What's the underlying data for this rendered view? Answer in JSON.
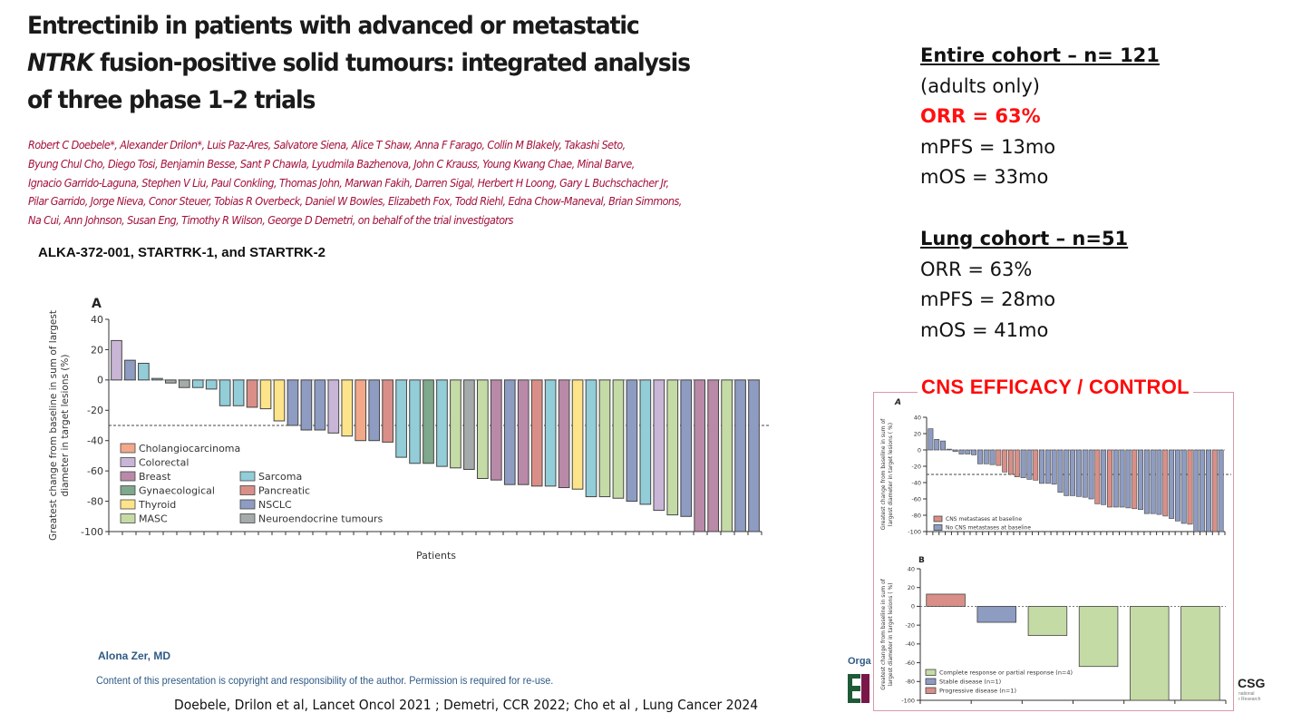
{
  "title": {
    "part1": "Entrectinib in patients with advanced or metastatic ",
    "italic": "NTRK",
    "part2": " fusion-positive solid tumours: integrated analysis of three phase 1–2 trials"
  },
  "authors": "Robert C Doebele*, Alexander Drilon*, Luis Paz-Ares, Salvatore Siena, Alice T Shaw, Anna F Farago, Collin M Blakely, Takashi Seto,\nByung Chul Cho, Diego Tosi, Benjamin Besse, Sant P Chawla, Lyudmila Bazhenova, John C Krauss, Young Kwang Chae, Minal Barve,\nIgnacio Garrido-Laguna, Stephen V Liu, Paul Conkling, Thomas John, Marwan Fakih, Darren Sigal, Herbert H Loong, Gary L Buchschacher Jr,\nPilar Garrido, Jorge Nieva, Conor Steuer, Tobias R Overbeck, Daniel W Bowles, Elizabeth Fox, Todd Riehl, Edna Chow-Maneval, Brian Simmons,\nNa Cui, Ann Johnson, Susan Eng, Timothy R Wilson, George D Demetri, on behalf of the trial investigators",
  "trials": "ALKA-372-001, STARTRK-1, and STARTRK-2",
  "summary": {
    "entire_heading": "Entire cohort – n= 121",
    "entire_note": "(adults only)",
    "entire_orr": "ORR = 63%",
    "entire_mpfs": "mPFS = 13mo",
    "entire_mos": "mOS = 33mo",
    "lung_heading": "Lung cohort – n=51",
    "lung_orr": "ORR = 63%",
    "lung_mpfs": "mPFS = 28mo",
    "lung_mos": "mOS = 41mo",
    "highlight_color": "#ff1010"
  },
  "cns_title": "CNS EFFICACY / CONTROL",
  "footer": {
    "presenter": "Alona Zer, MD",
    "copyright": "Content of this presentation is copyright and responsibility of the author. Permission is required for re-use.",
    "references": "Doebele, Drilon et al, Lancet Oncol 2021 ; Demetri, CCR 2022; Cho et al , Lung Cancer 2024",
    "organiser_label": "Orga",
    "logo_right": "CSG",
    "logo_right_sub": "national\nr Research"
  },
  "chart_data": [
    {
      "type": "bar",
      "panel": "A",
      "title": "A",
      "xlabel": "Patients",
      "ylabel": "Greatest change from baseline in sum of largest diameter in target lesions (%)",
      "ylabel_lines": [
        "Greatest change from baseline in sum of largest",
        "diameter in target lesions (%)"
      ],
      "ylim": [
        -100,
        40
      ],
      "yticks": [
        "40",
        "20",
        "0",
        "-20",
        "-40",
        "-60",
        "-80",
        "-100"
      ],
      "ytick_values": [
        40,
        20,
        0,
        -20,
        -40,
        -60,
        -80,
        -100
      ],
      "reference_line": -30,
      "legend": [
        {
          "name": "Cholangiocarcinoma",
          "color": "#f2a98a"
        },
        {
          "name": "Colorectal",
          "color": "#c9b6d6"
        },
        {
          "name": "Breast",
          "color": "#b98aa8"
        },
        {
          "name": "Gynaecological",
          "color": "#7fa88c"
        },
        {
          "name": "Thyroid",
          "color": "#fde48a"
        },
        {
          "name": "MASC",
          "color": "#c5dba6"
        },
        {
          "name": "Sarcoma",
          "color": "#92cdd8"
        },
        {
          "name": "Pancreatic",
          "color": "#d98f88"
        },
        {
          "name": "NSCLC",
          "color": "#8e9cc2"
        },
        {
          "name": "Neuroendocrine tumours",
          "color": "#a5aaab"
        }
      ],
      "bars": [
        {
          "value": 26,
          "type": "Colorectal"
        },
        {
          "value": 13,
          "type": "NSCLC"
        },
        {
          "value": 11,
          "type": "Sarcoma"
        },
        {
          "value": 1,
          "type": "Sarcoma"
        },
        {
          "value": -2,
          "type": "Neuroendocrine tumours"
        },
        {
          "value": -5,
          "type": "Neuroendocrine tumours"
        },
        {
          "value": -5,
          "type": "Sarcoma"
        },
        {
          "value": -6,
          "type": "Sarcoma"
        },
        {
          "value": -17,
          "type": "Sarcoma"
        },
        {
          "value": -17,
          "type": "Sarcoma"
        },
        {
          "value": -18,
          "type": "Pancreatic"
        },
        {
          "value": -19,
          "type": "Thyroid"
        },
        {
          "value": -27,
          "type": "Thyroid"
        },
        {
          "value": -30,
          "type": "NSCLC"
        },
        {
          "value": -33,
          "type": "NSCLC"
        },
        {
          "value": -33,
          "type": "NSCLC"
        },
        {
          "value": -35,
          "type": "Colorectal"
        },
        {
          "value": -37,
          "type": "Thyroid"
        },
        {
          "value": -40,
          "type": "Cholangiocarcinoma"
        },
        {
          "value": -40,
          "type": "NSCLC"
        },
        {
          "value": -41,
          "type": "Pancreatic"
        },
        {
          "value": -51,
          "type": "Sarcoma"
        },
        {
          "value": -55,
          "type": "Sarcoma"
        },
        {
          "value": -55,
          "type": "Gynaecological"
        },
        {
          "value": -57,
          "type": "Sarcoma"
        },
        {
          "value": -58,
          "type": "MASC"
        },
        {
          "value": -59,
          "type": "Neuroendocrine tumours"
        },
        {
          "value": -65,
          "type": "MASC"
        },
        {
          "value": -66,
          "type": "Breast"
        },
        {
          "value": -69,
          "type": "NSCLC"
        },
        {
          "value": -69,
          "type": "Breast"
        },
        {
          "value": -70,
          "type": "Pancreatic"
        },
        {
          "value": -70,
          "type": "Sarcoma"
        },
        {
          "value": -71,
          "type": "Breast"
        },
        {
          "value": -72,
          "type": "Thyroid"
        },
        {
          "value": -77,
          "type": "Sarcoma"
        },
        {
          "value": -77,
          "type": "MASC"
        },
        {
          "value": -78,
          "type": "MASC"
        },
        {
          "value": -80,
          "type": "NSCLC"
        },
        {
          "value": -82,
          "type": "Sarcoma"
        },
        {
          "value": -86,
          "type": "Colorectal"
        },
        {
          "value": -89,
          "type": "MASC"
        },
        {
          "value": -90,
          "type": "NSCLC"
        },
        {
          "value": -100,
          "type": "Breast"
        },
        {
          "value": -100,
          "type": "Breast"
        },
        {
          "value": -100,
          "type": "MASC"
        },
        {
          "value": -100,
          "type": "NSCLC"
        },
        {
          "value": -100,
          "type": "NSCLC"
        }
      ]
    },
    {
      "type": "bar",
      "panel": "CNS-A",
      "title": "A",
      "ylabel_lines": [
        "Greatest change from baseline in sum of",
        "largest diameter in target lesions ( %)"
      ],
      "ylim": [
        -100,
        40
      ],
      "yticks": [
        "40",
        "20",
        "0",
        "-20",
        "-40",
        "-60",
        "-80",
        "-100"
      ],
      "ytick_values": [
        40,
        20,
        0,
        -20,
        -40,
        -60,
        -80,
        -100
      ],
      "reference_line": -30,
      "legend": [
        {
          "name": "CNS metastases at baseline",
          "color": "#d98f88"
        },
        {
          "name": "No CNS metastases at baseline",
          "color": "#8e9cc2"
        }
      ],
      "bars": [
        {
          "value": 26,
          "cns": false
        },
        {
          "value": 13,
          "cns": false
        },
        {
          "value": 11,
          "cns": false
        },
        {
          "value": 1,
          "cns": false
        },
        {
          "value": -2,
          "cns": false
        },
        {
          "value": -5,
          "cns": false
        },
        {
          "value": -5,
          "cns": false
        },
        {
          "value": -6,
          "cns": false
        },
        {
          "value": -17,
          "cns": false
        },
        {
          "value": -17,
          "cns": false
        },
        {
          "value": -18,
          "cns": false
        },
        {
          "value": -19,
          "cns": true
        },
        {
          "value": -27,
          "cns": true
        },
        {
          "value": -30,
          "cns": true
        },
        {
          "value": -33,
          "cns": true
        },
        {
          "value": -34,
          "cns": false
        },
        {
          "value": -36,
          "cns": false
        },
        {
          "value": -37,
          "cns": true
        },
        {
          "value": -41,
          "cns": false
        },
        {
          "value": -41,
          "cns": false
        },
        {
          "value": -42,
          "cns": false
        },
        {
          "value": -52,
          "cns": false
        },
        {
          "value": -56,
          "cns": false
        },
        {
          "value": -56,
          "cns": false
        },
        {
          "value": -57,
          "cns": false
        },
        {
          "value": -58,
          "cns": false
        },
        {
          "value": -60,
          "cns": false
        },
        {
          "value": -66,
          "cns": true
        },
        {
          "value": -67,
          "cns": false
        },
        {
          "value": -70,
          "cns": true
        },
        {
          "value": -70,
          "cns": false
        },
        {
          "value": -70,
          "cns": false
        },
        {
          "value": -71,
          "cns": false
        },
        {
          "value": -72,
          "cns": true
        },
        {
          "value": -73,
          "cns": false
        },
        {
          "value": -78,
          "cns": false
        },
        {
          "value": -78,
          "cns": false
        },
        {
          "value": -79,
          "cns": false
        },
        {
          "value": -81,
          "cns": true
        },
        {
          "value": -84,
          "cns": false
        },
        {
          "value": -87,
          "cns": false
        },
        {
          "value": -90,
          "cns": false
        },
        {
          "value": -91,
          "cns": true
        },
        {
          "value": -100,
          "cns": false
        },
        {
          "value": -100,
          "cns": false
        },
        {
          "value": -100,
          "cns": false
        },
        {
          "value": -100,
          "cns": true
        },
        {
          "value": -100,
          "cns": false
        }
      ]
    },
    {
      "type": "bar",
      "panel": "CNS-B",
      "title": "B",
      "ylabel_lines": [
        "Greatest change from baseline in sum of",
        "largest diameter in target lesions ( %)"
      ],
      "ylim": [
        -100,
        40
      ],
      "yticks": [
        "40",
        "20",
        "0",
        "-20",
        "-40",
        "-60",
        "-80",
        "-100"
      ],
      "ytick_values": [
        40,
        20,
        0,
        -20,
        -40,
        -60,
        -80,
        -100
      ],
      "legend": [
        {
          "name": "Complete response or partial response (n=4)",
          "color": "#c5dba6"
        },
        {
          "name": "Stable disease (n=1)",
          "color": "#8e9cc2"
        },
        {
          "name": "Progressive disease (n=1)",
          "color": "#d98f88"
        }
      ],
      "bars": [
        {
          "value": 13,
          "response": "Progressive disease (n=1)"
        },
        {
          "value": -17,
          "response": "Stable disease (n=1)"
        },
        {
          "value": -31,
          "response": "Complete response or partial response (n=4)"
        },
        {
          "value": -64,
          "response": "Complete response or partial response (n=4)"
        },
        {
          "value": -100,
          "response": "Complete response or partial response (n=4)"
        },
        {
          "value": -100,
          "response": "Complete response or partial response (n=4)"
        }
      ]
    }
  ]
}
